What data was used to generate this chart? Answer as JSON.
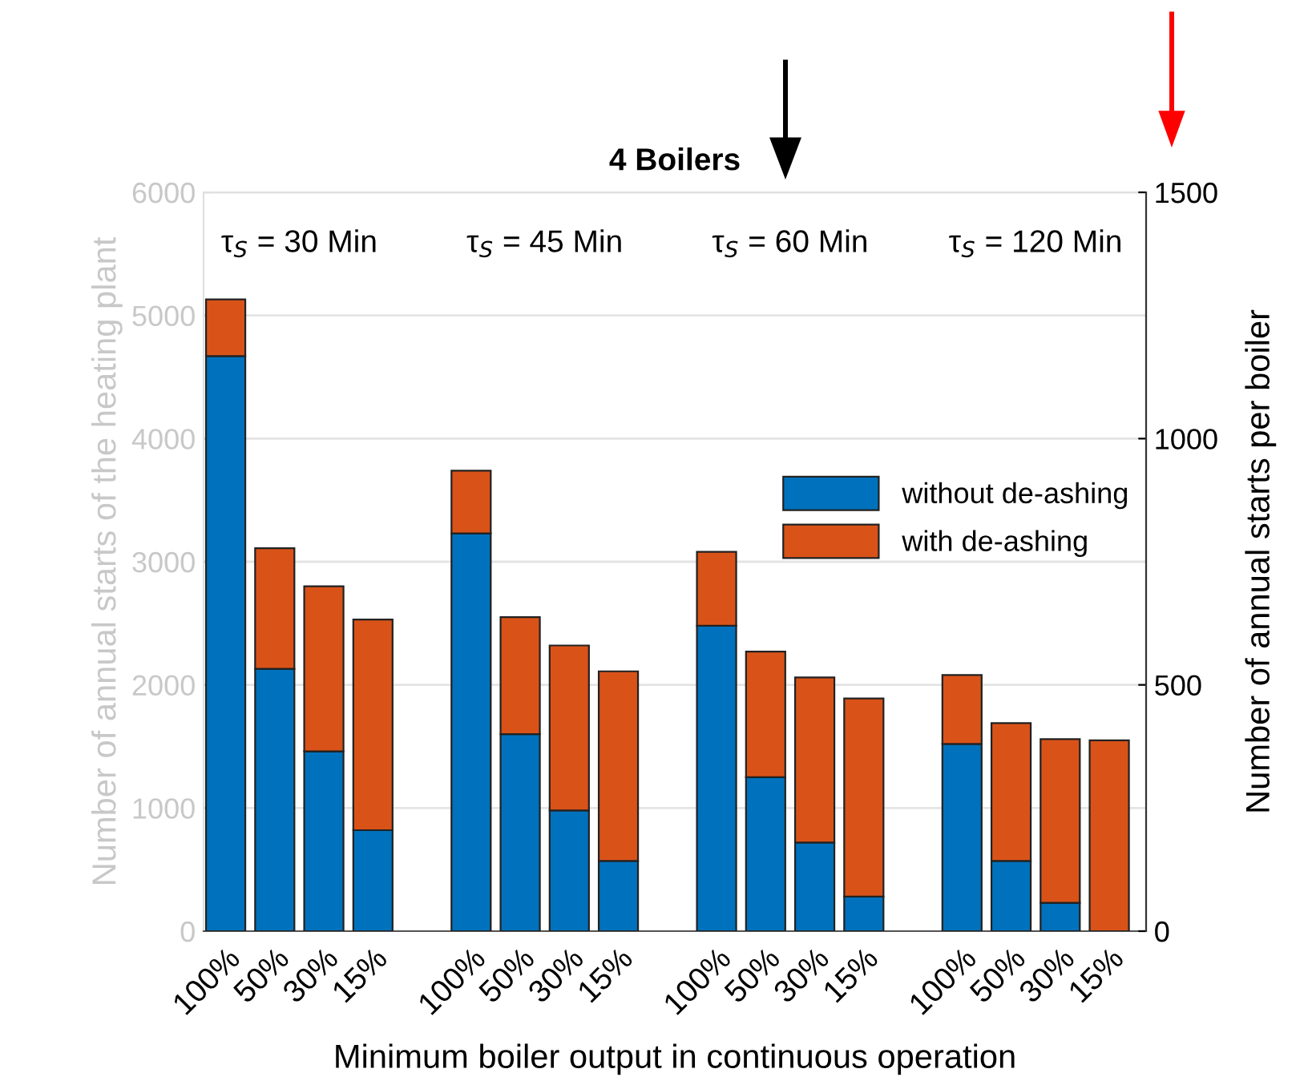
{
  "chart_data": {
    "type": "bar",
    "title": "4 Boilers",
    "stacked": true,
    "xlabel": "Minimum boiler output in continuous operation",
    "ylabel": "Number of annual starts of the heating plant",
    "y2label": "Number of annual starts per boiler",
    "categories": [
      "100%",
      "50%",
      "30%",
      "15%",
      null,
      "100%",
      "50%",
      "30%",
      "15%",
      null,
      "100%",
      "50%",
      "30%",
      "15%",
      null,
      "100%",
      "50%",
      "30%",
      "15%"
    ],
    "series": [
      {
        "name": "without de-ashing",
        "color": "#0072bd",
        "values": [
          4670,
          2130,
          1460,
          820,
          null,
          3230,
          1600,
          980,
          570,
          null,
          2480,
          1250,
          720,
          280,
          null,
          1520,
          570,
          230,
          null
        ]
      },
      {
        "name": "with de-ashing",
        "color": "#d95319",
        "values": [
          460,
          980,
          1340,
          1710,
          null,
          510,
          950,
          1340,
          1540,
          null,
          600,
          1020,
          1340,
          1610,
          null,
          560,
          1120,
          1330,
          1550
        ]
      }
    ],
    "annotations": [
      "τ$_{S}$ = 30 Min",
      "τ$_{S}$ = 45 Min",
      "τ$_{S}$ = 60 Min",
      "τ$_{S}$ = 120 Min"
    ],
    "ylim": [
      0,
      6000
    ],
    "yticks": [
      0,
      1000,
      2000,
      3000,
      4000,
      5000,
      6000
    ],
    "y2lim": [
      0,
      1500
    ],
    "y2ticks": [
      0,
      500,
      1000,
      1500
    ],
    "grid": "y",
    "legend": "right"
  }
}
